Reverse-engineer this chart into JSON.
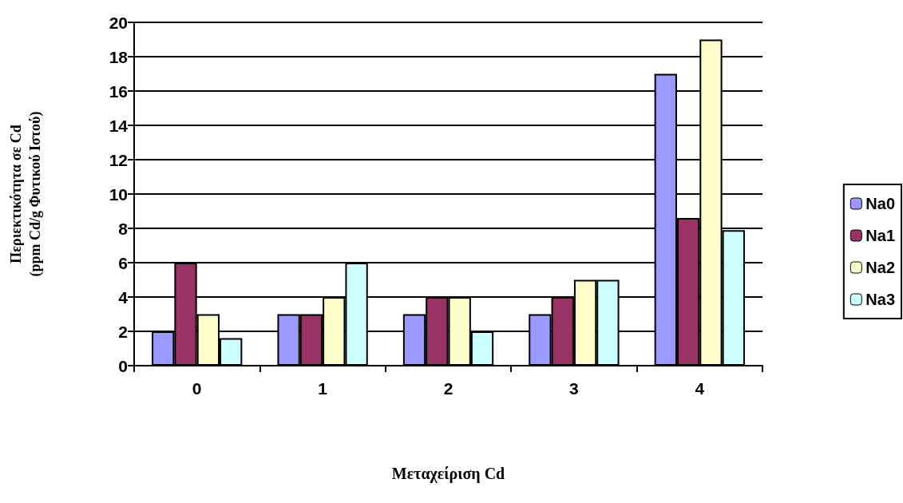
{
  "chart_data": {
    "type": "bar",
    "xlabel": "Μεταχείριση Cd",
    "ylabel": "Περιεκτικότητα σε Cd\n(ppm Cd/g Φυτικού Ιστού)",
    "categories": [
      "0",
      "1",
      "2",
      "3",
      "4"
    ],
    "series": [
      {
        "name": "Na0",
        "color": "#9999ff",
        "values": [
          2,
          3,
          3,
          3,
          17
        ]
      },
      {
        "name": "Na1",
        "color": "#993366",
        "values": [
          6,
          3,
          4,
          4,
          8.6
        ]
      },
      {
        "name": "Na2",
        "color": "#ffffcc",
        "values": [
          3,
          4,
          4,
          5,
          19
        ]
      },
      {
        "name": "Na3",
        "color": "#ccffff",
        "values": [
          1.6,
          6,
          2,
          5,
          7.9
        ]
      }
    ],
    "ylim": [
      0,
      20
    ],
    "yticks": [
      0,
      2,
      4,
      6,
      8,
      10,
      12,
      14,
      16,
      18,
      20
    ],
    "grid": "y",
    "legend": "right"
  }
}
